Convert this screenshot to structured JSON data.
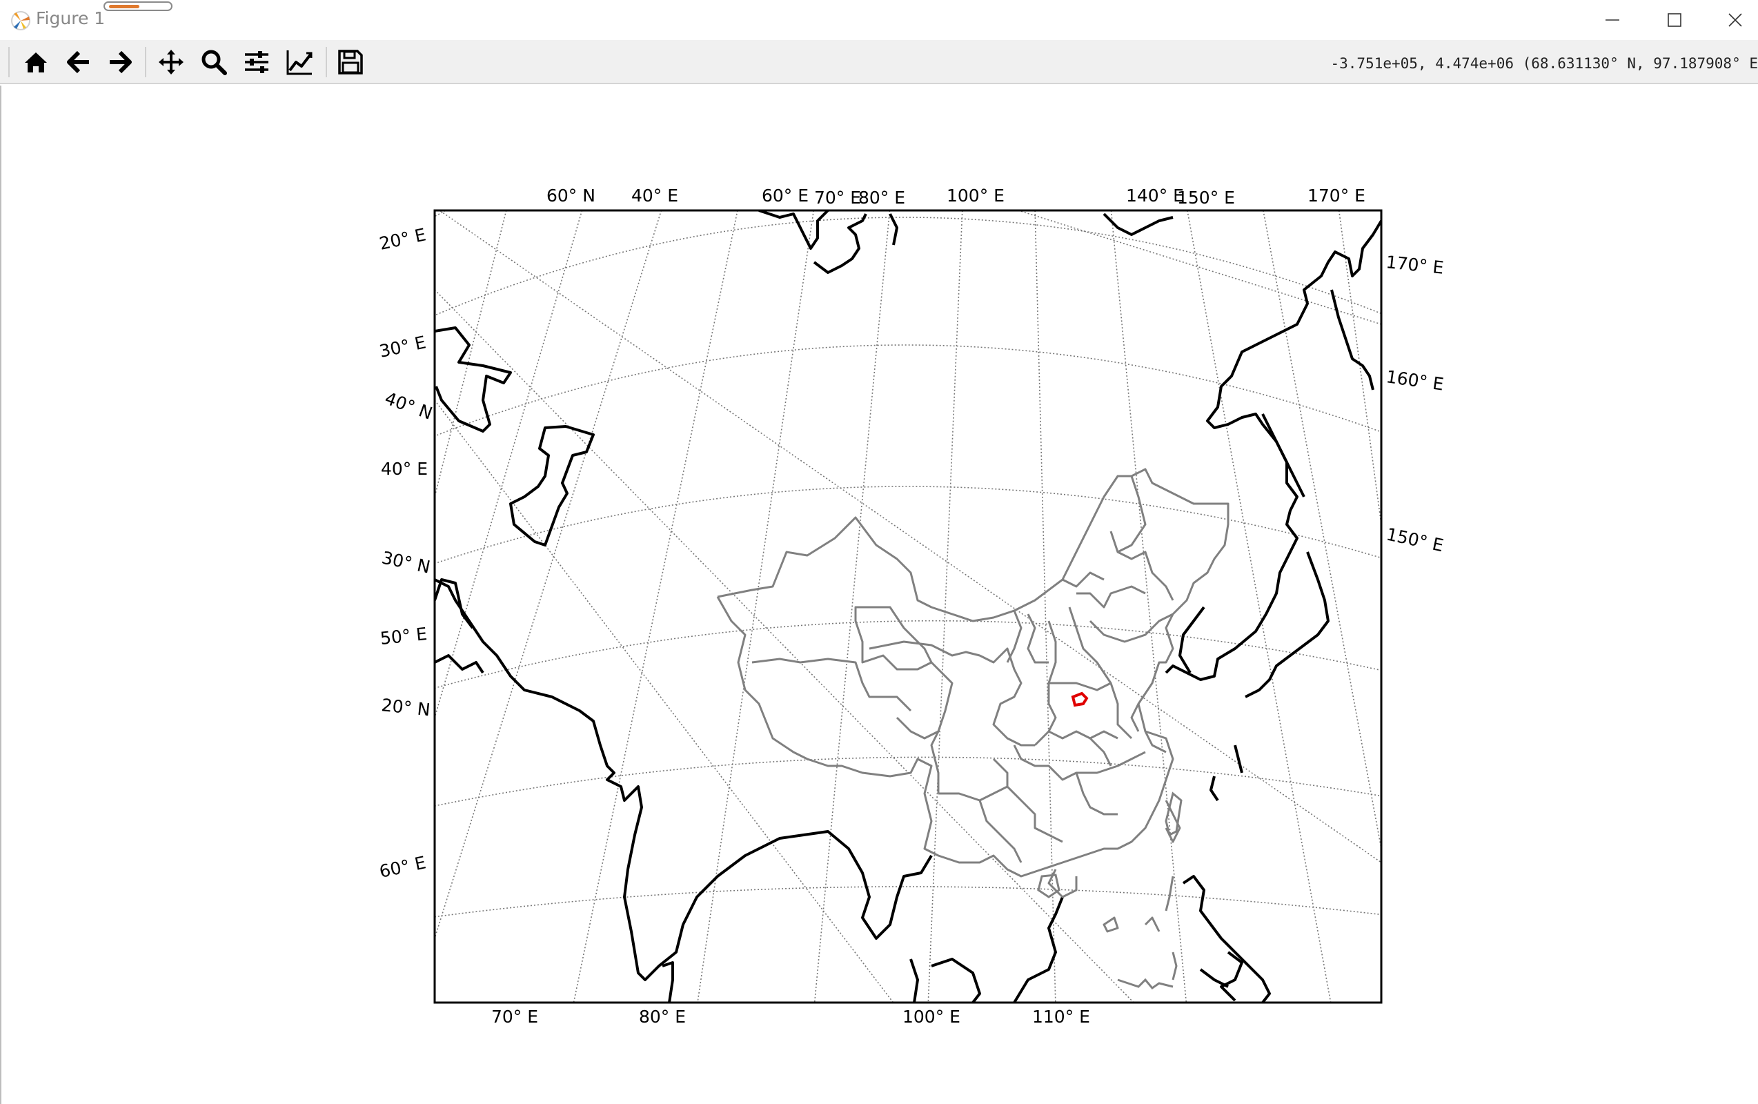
{
  "window": {
    "title": "Figure 1",
    "progress": 0.5,
    "icon": "matplotlib-icon"
  },
  "toolbar": {
    "buttons": [
      {
        "name": "home",
        "icon": "home-icon"
      },
      {
        "name": "back",
        "icon": "arrow-left-icon"
      },
      {
        "name": "forward",
        "icon": "arrow-right-icon"
      },
      {
        "name": "pan",
        "icon": "move-icon"
      },
      {
        "name": "zoom",
        "icon": "search-icon"
      },
      {
        "name": "subplots",
        "icon": "sliders-icon"
      },
      {
        "name": "customize",
        "icon": "line-chart-icon"
      },
      {
        "name": "save",
        "icon": "floppy-disk-icon"
      }
    ],
    "coordinates": "-3.751e+05, 4.474e+06 (68.631130° N, 97.187908° E"
  },
  "map": {
    "colors": {
      "coastline": "#000000",
      "province": "#808080",
      "highlight": "#e00000",
      "graticule": "#777777"
    },
    "top_labels": [
      "60° N",
      "40° E",
      "60° E",
      "70° E",
      "80° E",
      "100° E",
      "140° E",
      "150° E",
      "170° E"
    ],
    "left_labels": [
      "20° E",
      "30° E",
      "40° N",
      "40° E",
      "30° N",
      "50° E",
      "20° N",
      "60° E"
    ],
    "right_labels": [
      "170° E",
      "160° E",
      "150° E"
    ],
    "bottom_labels": [
      "70° E",
      "80° E",
      "100° E",
      "110° E"
    ]
  }
}
